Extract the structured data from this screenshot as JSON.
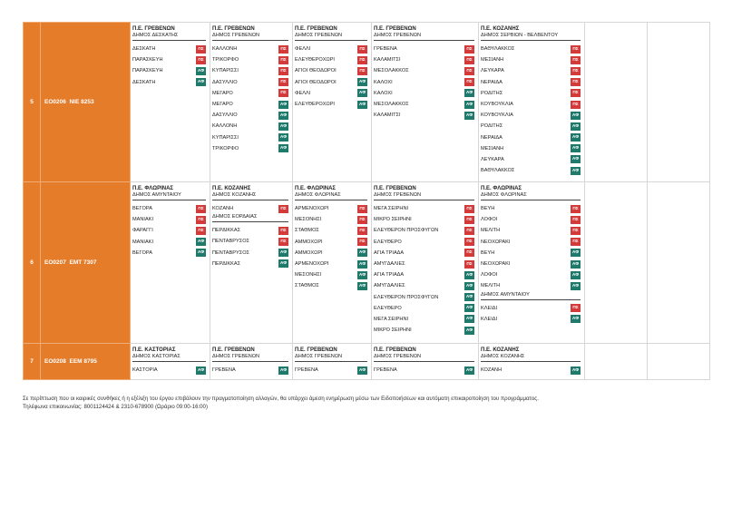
{
  "colors": {
    "row_header": "#e57c2a",
    "badge_dep": "#d33a3a",
    "badge_arr": "#1f7a6c"
  },
  "rows": [
    {
      "num": "5",
      "code": "EO0206",
      "plate": "ΝΙΕ 8253",
      "groups": [
        {
          "pe": "Π.Ε. ΓΡΕΒΕΝΩΝ",
          "dim": "ΔΗΜΟΣ ΔΕΣΚΑΤΗΣ",
          "stops": [
            {
              "name": "ΔΕΣΚΑΤΗ",
              "badge": "ΠΣ"
            },
            {
              "name": "ΠΑΡΑΣΚΕΥΗ",
              "badge": "ΠΣ"
            },
            {
              "name": "ΠΑΡΑΣΚΕΥΗ",
              "badge": "ΑΦ"
            },
            {
              "name": "ΔΕΣΚΑΤΗ",
              "badge": "ΑΦ"
            }
          ]
        },
        {
          "pe": "Π.Ε. ΓΡΕΒΕΝΩΝ",
          "dim": "ΔΗΜΟΣ ΓΡΕΒΕΝΩΝ",
          "stops": [
            {
              "name": "ΚΑΛΛΟΝΗ",
              "badge": "ΠΣ"
            },
            {
              "name": "ΤΡΙΚΟΡΦΟ",
              "badge": "ΠΣ"
            },
            {
              "name": "ΚΥΠΑΡΙΣΣΙ",
              "badge": "ΠΣ"
            },
            {
              "name": "ΔΑΣΥΛΛΙΟ",
              "badge": "ΠΣ"
            },
            {
              "name": "ΜΕΓΑΡΟ",
              "badge": "ΠΣ"
            },
            {
              "name": "ΜΕΓΑΡΟ",
              "badge": "ΑΦ"
            },
            {
              "name": "ΔΑΣΥΛΛΙΟ",
              "badge": "ΑΦ"
            },
            {
              "name": "ΚΑΛΛΟΝΗ",
              "badge": "ΑΦ"
            },
            {
              "name": "ΚΥΠΑΡΙΣΣΙ",
              "badge": "ΑΦ"
            },
            {
              "name": "ΤΡΙΚΟΡΦΟ",
              "badge": "ΑΦ"
            }
          ]
        },
        {
          "pe": "Π.Ε. ΓΡΕΒΕΝΩΝ",
          "dim": "ΔΗΜΟΣ ΓΡΕΒΕΝΩΝ",
          "stops": [
            {
              "name": "ΦΕΛΛΙ",
              "badge": "ΠΣ"
            },
            {
              "name": "ΕΛΕΥΘΕΡΟΧΩΡΙ",
              "badge": "ΠΣ"
            },
            {
              "name": "ΑΓΙΟΙ ΘΕΟΔΩΡΟΙ",
              "badge": "ΠΣ"
            },
            {
              "name": "ΑΓΙΟΙ ΘΕΟΔΩΡΟΙ",
              "badge": "ΑΦ"
            },
            {
              "name": "ΦΕΛΛΙ",
              "badge": "ΑΦ"
            },
            {
              "name": "ΕΛΕΥΘΕΡΟΧΩΡΙ",
              "badge": "ΑΦ"
            }
          ]
        },
        {
          "pe": "Π.Ε. ΓΡΕΒΕΝΩΝ",
          "dim": "ΔΗΜΟΣ ΓΡΕΒΕΝΩΝ",
          "stops": [
            {
              "name": "ΓΡΕΒΕΝΑ",
              "badge": "ΠΣ"
            },
            {
              "name": "ΚΑΛΑΜΙΤΣΙ",
              "badge": "ΠΣ"
            },
            {
              "name": "ΜΕΣΟΛΑΚΚΟΣ",
              "badge": "ΠΣ"
            },
            {
              "name": "ΚΑΛΟΧΙ",
              "badge": "ΠΣ"
            },
            {
              "name": "ΚΑΛΟΧΙ",
              "badge": "ΑΦ"
            },
            {
              "name": "ΜΕΣΟΛΑΚΚΟΣ",
              "badge": "ΑΦ"
            },
            {
              "name": "ΚΑΛΑΜΙΤΣΙ",
              "badge": "ΑΦ"
            }
          ]
        },
        {
          "pe": "Π.Ε. ΚΟΖΑΝΗΣ",
          "dim": "ΔΗΜΟΣ ΣΕΡΒΙΩΝ - ΒΕΛΒΕΝΤΟΥ",
          "stops": [
            {
              "name": "ΒΑΘΥΛΑΚΚΟΣ",
              "badge": "ΠΣ"
            },
            {
              "name": "ΜΕΣΙΑΝΗ",
              "badge": "ΠΣ"
            },
            {
              "name": "ΛΕΥΚΑΡΑ",
              "badge": "ΠΣ"
            },
            {
              "name": "ΝΕΡΑΙΔΑ",
              "badge": "ΠΣ"
            },
            {
              "name": "ΡΟΔΙΤΗΣ",
              "badge": "ΠΣ"
            },
            {
              "name": "ΚΟΥΒΟΥΚΛΙΑ",
              "badge": "ΠΣ"
            },
            {
              "name": "ΚΟΥΒΟΥΚΛΙΑ",
              "badge": "ΑΦ"
            },
            {
              "name": "ΡΟΔΙΤΗΣ",
              "badge": "ΑΦ"
            },
            {
              "name": "ΝΕΡΑΙΔΑ",
              "badge": "ΑΦ"
            },
            {
              "name": "ΜΕΣΙΑΝΗ",
              "badge": "ΑΦ"
            },
            {
              "name": "ΛΕΥΚΑΡΑ",
              "badge": "ΑΦ"
            },
            {
              "name": "ΒΑΘΥΛΑΚΚΟΣ",
              "badge": "ΑΦ"
            }
          ]
        }
      ]
    },
    {
      "num": "6",
      "code": "EO0207",
      "plate": "ΕΜΤ 7307",
      "groups": [
        {
          "pe": "Π.Ε. ΦΛΩΡΙΝΑΣ",
          "dim": "ΔΗΜΟΣ ΑΜΥΝΤΑΙΟΥ",
          "stops": [
            {
              "name": "ΒΕΓΟΡΑ",
              "badge": "ΠΣ"
            },
            {
              "name": "ΜΑΝΙΑΚΙ",
              "badge": "ΠΣ"
            },
            {
              "name": "ΦΑΡΑΓΓΙ",
              "badge": "ΠΣ"
            },
            {
              "name": "ΜΑΝΙΑΚΙ",
              "badge": "ΑΦ"
            },
            {
              "name": "ΒΕΓΟΡΑ",
              "badge": "ΑΦ"
            }
          ]
        },
        {
          "pe": "Π.Ε. ΚΟΖΑΝΗΣ",
          "dim": "ΔΗΜΟΣ ΚΟΖΑΝΗΣ",
          "stops": [
            {
              "name": "ΚΟΖΑΝΗ",
              "badge": "ΠΣ"
            }
          ],
          "pe2": "",
          "dim2": "ΔΗΜΟΣ ΕΟΡΔΑΙΑΣ",
          "stops2": [
            {
              "name": "ΠΕΡΔΙΚΚΑΣ",
              "badge": "ΠΣ"
            },
            {
              "name": "ΠΕΝΤΑΒΡΥΣΟΣ",
              "badge": "ΠΣ"
            },
            {
              "name": "ΠΕΝΤΑΒΡΥΣΟΣ",
              "badge": "ΑΦ"
            },
            {
              "name": "ΠΕΡΔΙΚΚΑΣ",
              "badge": "ΑΦ"
            }
          ]
        },
        {
          "pe": "Π.Ε. ΦΛΩΡΙΝΑΣ",
          "dim": "ΔΗΜΟΣ ΦΛΩΡΙΝΑΣ",
          "stops": [
            {
              "name": "ΑΡΜΕΝΟΧΩΡΙ",
              "badge": "ΠΣ"
            },
            {
              "name": "ΜΕΣΟΝΗΣΙ",
              "badge": "ΠΣ"
            },
            {
              "name": "ΣΤΑΘΜΟΣ",
              "badge": "ΠΣ"
            },
            {
              "name": "ΑΜΜΟΧΩΡΙ",
              "badge": "ΠΣ"
            },
            {
              "name": "ΑΜΜΟΧΩΡΙ",
              "badge": "ΑΦ"
            },
            {
              "name": "ΑΡΜΕΝΟΧΩΡΙ",
              "badge": "ΑΦ"
            },
            {
              "name": "ΜΕΣΟΝΗΣΙ",
              "badge": "ΑΦ"
            },
            {
              "name": "ΣΤΑΘΜΟΣ",
              "badge": "ΑΦ"
            }
          ]
        },
        {
          "pe": "Π.Ε. ΓΡΕΒΕΝΩΝ",
          "dim": "ΔΗΜΟΣ ΓΡΕΒΕΝΩΝ",
          "stops": [
            {
              "name": "ΜΕΓΑ ΣΕΙΡΗΝΙ",
              "badge": "ΠΣ"
            },
            {
              "name": "ΜΙΚΡΟ ΣΕΙΡΗΝΙ",
              "badge": "ΠΣ"
            },
            {
              "name": "ΕΛΕΥΘΕΡΟΝ ΠΡΟΣΦΥΓΩΝ",
              "badge": "ΠΣ"
            },
            {
              "name": "ΕΛΕΥΘΕΡΟ",
              "badge": "ΠΣ"
            },
            {
              "name": "ΑΓΙΑ ΤΡΙΑΔΑ",
              "badge": "ΠΣ"
            },
            {
              "name": "ΑΜΥΓΔΑΛΙΕΣ",
              "badge": "ΠΣ"
            },
            {
              "name": "ΑΓΙΑ ΤΡΙΑΔΑ",
              "badge": "ΑΦ"
            },
            {
              "name": "ΑΜΥΓΔΑΛΙΕΣ",
              "badge": "ΑΦ"
            },
            {
              "name": "ΕΛΕΥΘΕΡΟΝ ΠΡΟΣΦΥΓΩΝ",
              "badge": "ΑΦ"
            },
            {
              "name": "ΕΛΕΥΘΕΡΟ",
              "badge": "ΑΦ"
            },
            {
              "name": "ΜΕΓΑ ΣΕΙΡΗΝΙ",
              "badge": "ΑΦ"
            },
            {
              "name": "ΜΙΚΡΟ ΣΕΙΡΗΝΙ",
              "badge": "ΑΦ"
            }
          ]
        },
        {
          "pe": "Π.Ε. ΦΛΩΡΙΝΑΣ",
          "dim": "ΔΗΜΟΣ ΦΛΩΡΙΝΑΣ",
          "stops": [
            {
              "name": "ΒΕΥΗ",
              "badge": "ΠΣ"
            },
            {
              "name": "ΛΟΦΟΙ",
              "badge": "ΠΣ"
            },
            {
              "name": "ΜΕΛΙΤΗ",
              "badge": "ΠΣ"
            },
            {
              "name": "ΝΕΟΧΩΡΑΚΙ",
              "badge": "ΠΣ"
            },
            {
              "name": "ΒΕΥΗ",
              "badge": "ΑΦ"
            },
            {
              "name": "ΝΕΟΧΩΡΑΚΙ",
              "badge": "ΑΦ"
            },
            {
              "name": "ΛΟΦΟΙ",
              "badge": "ΑΦ"
            },
            {
              "name": "ΜΕΛΙΤΗ",
              "badge": "ΑΦ"
            }
          ],
          "pe2": "",
          "dim2": "ΔΗΜΟΣ ΑΜΥΝΤΑΙΟΥ",
          "stops2": [
            {
              "name": "ΚΛΕΙΔΙ",
              "badge": "ΠΣ"
            },
            {
              "name": "ΚΛΕΙΔΙ",
              "badge": "ΑΦ"
            }
          ]
        }
      ]
    },
    {
      "num": "7",
      "code": "EO0208",
      "plate": "ΕΕΜ 8795",
      "groups": [
        {
          "pe": "Π.Ε. ΚΑΣΤΟΡΙΑΣ",
          "dim": "ΔΗΜΟΣ ΚΑΣΤΟΡΙΑΣ",
          "stops": [
            {
              "name": "ΚΑΣΤΟΡΙΑ",
              "badge": "ΑΦ"
            }
          ]
        },
        {
          "pe": "Π.Ε. ΓΡΕΒΕΝΩΝ",
          "dim": "ΔΗΜΟΣ ΓΡΕΒΕΝΩΝ",
          "stops": [
            {
              "name": "ΓΡΕΒΕΝΑ",
              "badge": "ΑΦ"
            }
          ]
        },
        {
          "pe": "Π.Ε. ΓΡΕΒΕΝΩΝ",
          "dim": "ΔΗΜΟΣ ΓΡΕΒΕΝΩΝ",
          "stops": [
            {
              "name": "ΓΡΕΒΕΝΑ",
              "badge": "ΑΦ"
            }
          ]
        },
        {
          "pe": "Π.Ε. ΓΡΕΒΕΝΩΝ",
          "dim": "ΔΗΜΟΣ ΓΡΕΒΕΝΩΝ",
          "stops": [
            {
              "name": "ΓΡΕΒΕΝΑ",
              "badge": "ΑΦ"
            }
          ]
        },
        {
          "pe": "Π.Ε. ΚΟΖΑΝΗΣ",
          "dim": "ΔΗΜΟΣ ΚΟΖΑΝΗΣ",
          "stops": [
            {
              "name": "ΚΟΖΑΝΗ",
              "badge": "ΑΦ"
            }
          ]
        }
      ]
    }
  ],
  "footer": {
    "line1": "Σε περίπτωση που οι καιρικές συνθήκες ή η εξέλιξη του έργου επιβάλουν την πραγματοποίηση αλλαγών, θα υπάρχει άμεση ενημέρωση μέσω των Ειδοποιήσεων και αυτόματη επικαιροποίηση του προγράμματος.",
    "line2": "Τηλέφωνα επικοινωνίας: 8001124424 & 2310-678900 (Ωράριο 09:00-16:00)"
  }
}
